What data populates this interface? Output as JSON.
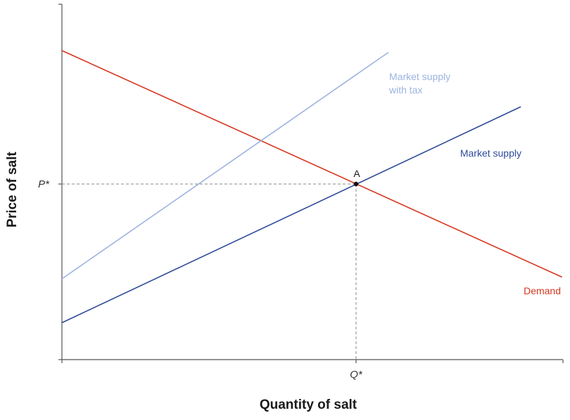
{
  "chart_data": {
    "type": "line",
    "title": "",
    "xlabel": "Quantity of salt",
    "ylabel": "Price of salt",
    "xlim": [
      0,
      10
    ],
    "ylim": [
      0,
      10
    ],
    "grid": false,
    "x_ticks": [
      {
        "value": 5,
        "label": "Q*"
      }
    ],
    "y_ticks": [
      {
        "value": 5,
        "label": "P*"
      }
    ],
    "equilibrium": {
      "label": "A",
      "x": 5,
      "y": 5
    },
    "series": [
      {
        "name": "Demand",
        "color": "#d6361f",
        "points": [
          [
            0,
            8.8
          ],
          [
            8.5,
            2.35
          ]
        ]
      },
      {
        "name": "Market supply",
        "color": "#2e4a9a",
        "points": [
          [
            0,
            1.05
          ],
          [
            7.8,
            7.2
          ]
        ]
      },
      {
        "name": "Market supply with tax",
        "label_lines": [
          "Market supply",
          "with tax"
        ],
        "color": "#9db3e0",
        "points": [
          [
            0,
            2.3
          ],
          [
            5.55,
            8.75
          ]
        ]
      }
    ]
  }
}
